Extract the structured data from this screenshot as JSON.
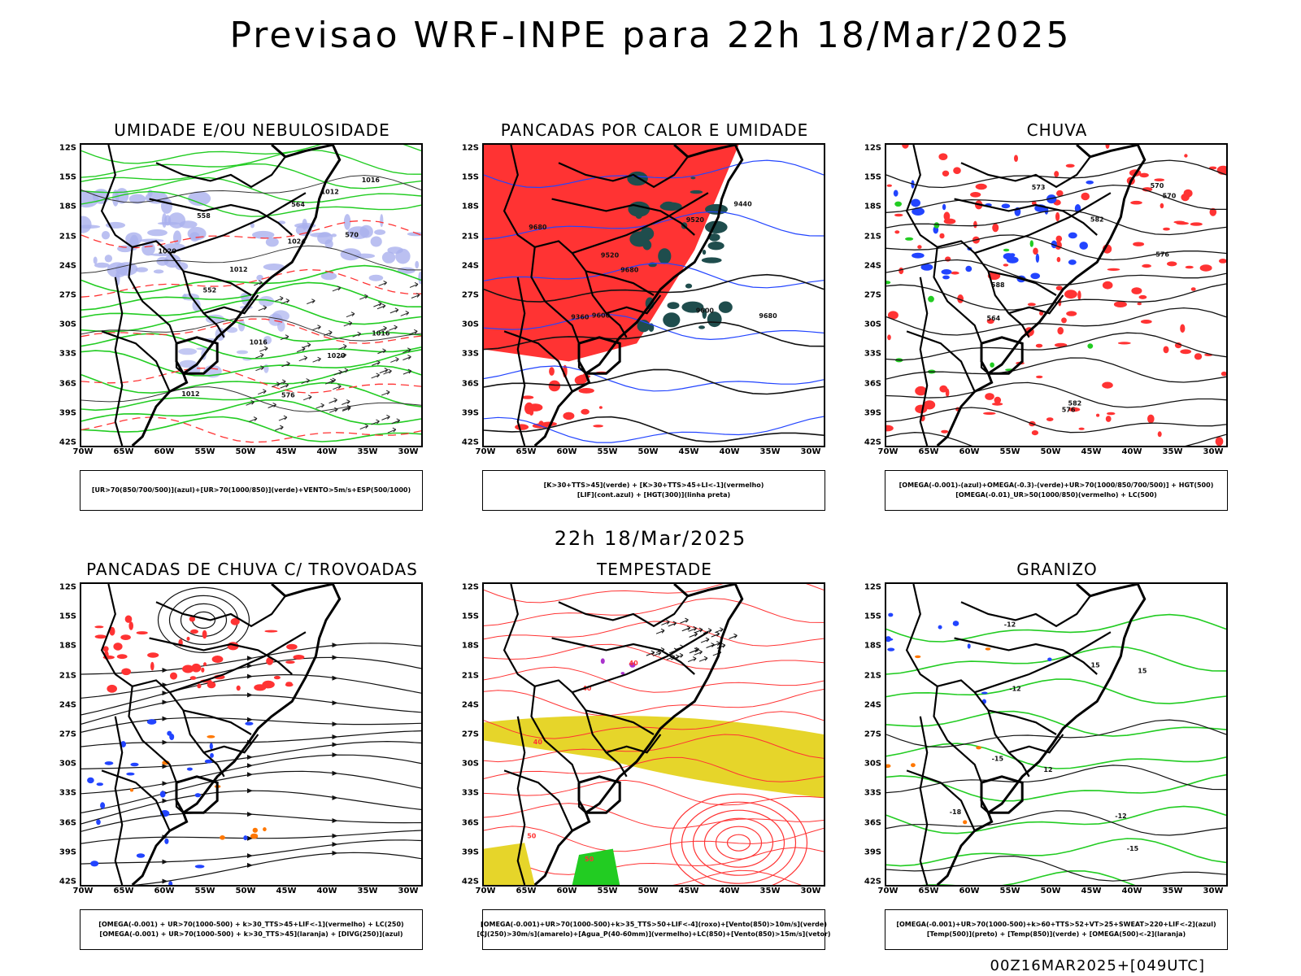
{
  "title": "Previsao WRF-INPE  para 22h 18/Mar/2025",
  "mid_time": "22h 18/Mar/2025",
  "footer": "00Z16MAR2025+[049UTC]",
  "lat_ticks": [
    "12S",
    "15S",
    "18S",
    "21S",
    "24S",
    "27S",
    "30S",
    "33S",
    "36S",
    "39S",
    "42S"
  ],
  "lon_ticks": [
    "70W",
    "65W",
    "60W",
    "55W",
    "50W",
    "45W",
    "40W",
    "35W",
    "30W"
  ],
  "colors": {
    "red": "#ff3333",
    "green": "#22cc22",
    "blue": "#2244ff",
    "lavender": "#aab0ee",
    "darkteal": "#1f4d4d",
    "yellow": "#e6d52a",
    "orange": "#ff7700",
    "purple": "#aa33cc"
  },
  "panels": [
    {
      "title": "UMIDADE E/OU NEBULOSIDADE",
      "legend": [
        "[UR>70(850/700/500)](azul)+[UR>70(1000/850)](verde)+VENTO>5m/s+ESP(500/1000)"
      ],
      "contour_labels": [
        "1012",
        "1012",
        "1012",
        "1016",
        "1016",
        "1016",
        "1020",
        "1020",
        "1024",
        "570",
        "576",
        "564",
        "558",
        "552"
      ]
    },
    {
      "title": "PANCADAS POR CALOR E UMIDADE",
      "legend": [
        "[K>30+TTS>45](verde) + [K>30+TTS>45+LI<-1](vermelho)",
        "[LIF](cont.azul) + [HGT(300)](linha preta)"
      ],
      "contour_labels": [
        "9600",
        "9520",
        "9440",
        "9360",
        "9680",
        "9680",
        "9680",
        "9600",
        "9520"
      ]
    },
    {
      "title": "CHUVA",
      "legend": [
        "[OMEGA(-0.001)-(azul)+OMEGA(-0.3)-(verde)+UR>70(1000/850/700/500)] + HGT(500)",
        "[OMEGA(-0.01)_UR>50(1000/850)(vermelho) + LC(500)"
      ],
      "contour_labels": [
        "588",
        "582",
        "576",
        "570",
        "564",
        "582",
        "576",
        "573",
        "570"
      ]
    },
    {
      "title": "PANCADAS DE CHUVA C/ TROVOADAS",
      "legend": [
        "[OMEGA(-0.001) + UR>70(1000-500) + k>30_TTS>45+LIF<-1](vermelho) + LC(250)",
        "[OMEGA(-0.001) + UR>70(1000-500) + k>30_TTS>45](laranja) + [DIVG(250)](azul)"
      ],
      "contour_labels": []
    },
    {
      "title": "TEMPESTADE",
      "legend": [
        "[OMEGA(-0.001)+UR>70(1000-500)+k>35_TTS>50+LIF<-4](roxo)+[Vento(850)>10m/s](verde)",
        "[CJ(250)>30m/s](amarelo)+[Agua_P(40-60mm)](vermelho)+LC(850)+[Vento(850)>15m/s](vetor)"
      ],
      "contour_labels": [
        "50",
        "40",
        "40",
        "50",
        "40"
      ]
    },
    {
      "title": "GRANIZO",
      "legend": [
        "[OMEGA(-0.001)+UR>70(1000-500)+k>60+TTS>52+VT>25+SWEAT>220+LIF<-2](azul)",
        "[Temp(500)](preto) + [Temp(850)](verde) + [OMEGA(500)<-2](laranja)"
      ],
      "contour_labels": [
        "-12",
        "-12",
        "-12",
        "-15",
        "-15",
        "-18",
        "15",
        "15",
        "12"
      ]
    }
  ]
}
